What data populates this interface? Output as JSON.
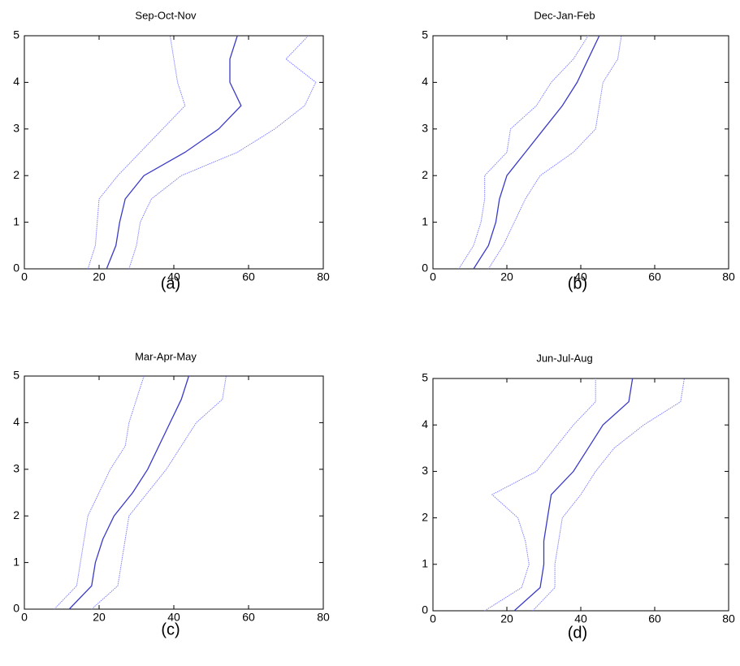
{
  "chart_data": [
    {
      "type": "line",
      "title": "Sep-Oct-Nov",
      "caption": "(a)",
      "xlim": [
        0,
        80
      ],
      "ylim": [
        0,
        5
      ],
      "xticks": [
        0,
        20,
        40,
        60,
        80
      ],
      "yticks": [
        0,
        1,
        2,
        3,
        4,
        5
      ],
      "y": [
        0,
        0.5,
        1,
        1.5,
        2,
        2.5,
        3,
        3.5,
        4,
        4.5,
        5
      ],
      "series": [
        {
          "color": "#7f7fff",
          "linestyle": "dotted",
          "x": [
            17,
            19,
            19.5,
            20,
            25,
            31,
            37,
            43,
            41,
            40,
            39
          ]
        },
        {
          "color": "#3a3ac8",
          "linestyle": "solid",
          "x": [
            22,
            24.5,
            25.5,
            27,
            32,
            43,
            52,
            58,
            55,
            55,
            57
          ]
        },
        {
          "color": "#7f7fff",
          "linestyle": "dotted",
          "x": [
            28,
            30,
            31,
            34,
            42,
            57,
            67,
            75,
            78,
            70,
            76
          ]
        }
      ]
    },
    {
      "type": "line",
      "title": "Dec-Jan-Feb",
      "caption": "(b)",
      "xlim": [
        0,
        80
      ],
      "ylim": [
        0,
        5
      ],
      "xticks": [
        0,
        20,
        40,
        60,
        80
      ],
      "yticks": [
        0,
        1,
        2,
        3,
        4,
        5
      ],
      "y": [
        0,
        0.5,
        1,
        1.5,
        2,
        2.5,
        3,
        3.5,
        4,
        4.5,
        5
      ],
      "series": [
        {
          "color": "#7f7fff",
          "linestyle": "dotted",
          "x": [
            7,
            11,
            13,
            14,
            14,
            20,
            21,
            28,
            32,
            38,
            42
          ]
        },
        {
          "color": "#3a3ac8",
          "linestyle": "solid",
          "x": [
            11,
            15,
            17,
            18,
            20,
            25,
            30,
            35,
            39,
            42,
            45
          ]
        },
        {
          "color": "#7f7fff",
          "linestyle": "dotted",
          "x": [
            15,
            19,
            22,
            25,
            29,
            38,
            44,
            45,
            46,
            50,
            51
          ]
        }
      ]
    },
    {
      "type": "line",
      "title": "Mar-Apr-May",
      "caption": "(c)",
      "xlim": [
        0,
        80
      ],
      "ylim": [
        0,
        5
      ],
      "xticks": [
        0,
        20,
        40,
        60,
        80
      ],
      "yticks": [
        0,
        1,
        2,
        3,
        4,
        5
      ],
      "y": [
        0,
        0.5,
        1,
        1.5,
        2,
        2.5,
        3,
        3.5,
        4,
        4.5,
        5
      ],
      "series": [
        {
          "color": "#7f7fff",
          "linestyle": "dotted",
          "x": [
            8,
            14,
            15,
            16,
            17,
            20,
            23,
            27,
            28,
            30,
            32
          ]
        },
        {
          "color": "#3a3ac8",
          "linestyle": "solid",
          "x": [
            12,
            18,
            19,
            21,
            24,
            29,
            33,
            36,
            39,
            42,
            44
          ]
        },
        {
          "color": "#7f7fff",
          "linestyle": "dotted",
          "x": [
            18,
            25,
            26,
            27,
            28,
            33,
            38,
            42,
            46,
            53,
            54
          ]
        }
      ]
    },
    {
      "type": "line",
      "title": "Jun-Jul-Aug",
      "caption": "(d)",
      "xlim": [
        0,
        80
      ],
      "ylim": [
        0,
        5
      ],
      "xticks": [
        0,
        20,
        40,
        60,
        80
      ],
      "yticks": [
        0,
        1,
        2,
        3,
        4,
        5
      ],
      "y": [
        0,
        0.5,
        1,
        1.5,
        2,
        2.5,
        3,
        3.5,
        4,
        4.5,
        5
      ],
      "series": [
        {
          "color": "#7f7fff",
          "linestyle": "dotted",
          "x": [
            14,
            24,
            26,
            25,
            23,
            16,
            28,
            33,
            38,
            44,
            44
          ]
        },
        {
          "color": "#3a3ac8",
          "linestyle": "solid",
          "x": [
            22,
            29,
            30,
            30,
            31,
            32,
            38,
            42,
            46,
            53,
            54
          ]
        },
        {
          "color": "#7f7fff",
          "linestyle": "dotted",
          "x": [
            27,
            33,
            33,
            34,
            35,
            40,
            44,
            49,
            57,
            67,
            68
          ]
        }
      ]
    }
  ]
}
